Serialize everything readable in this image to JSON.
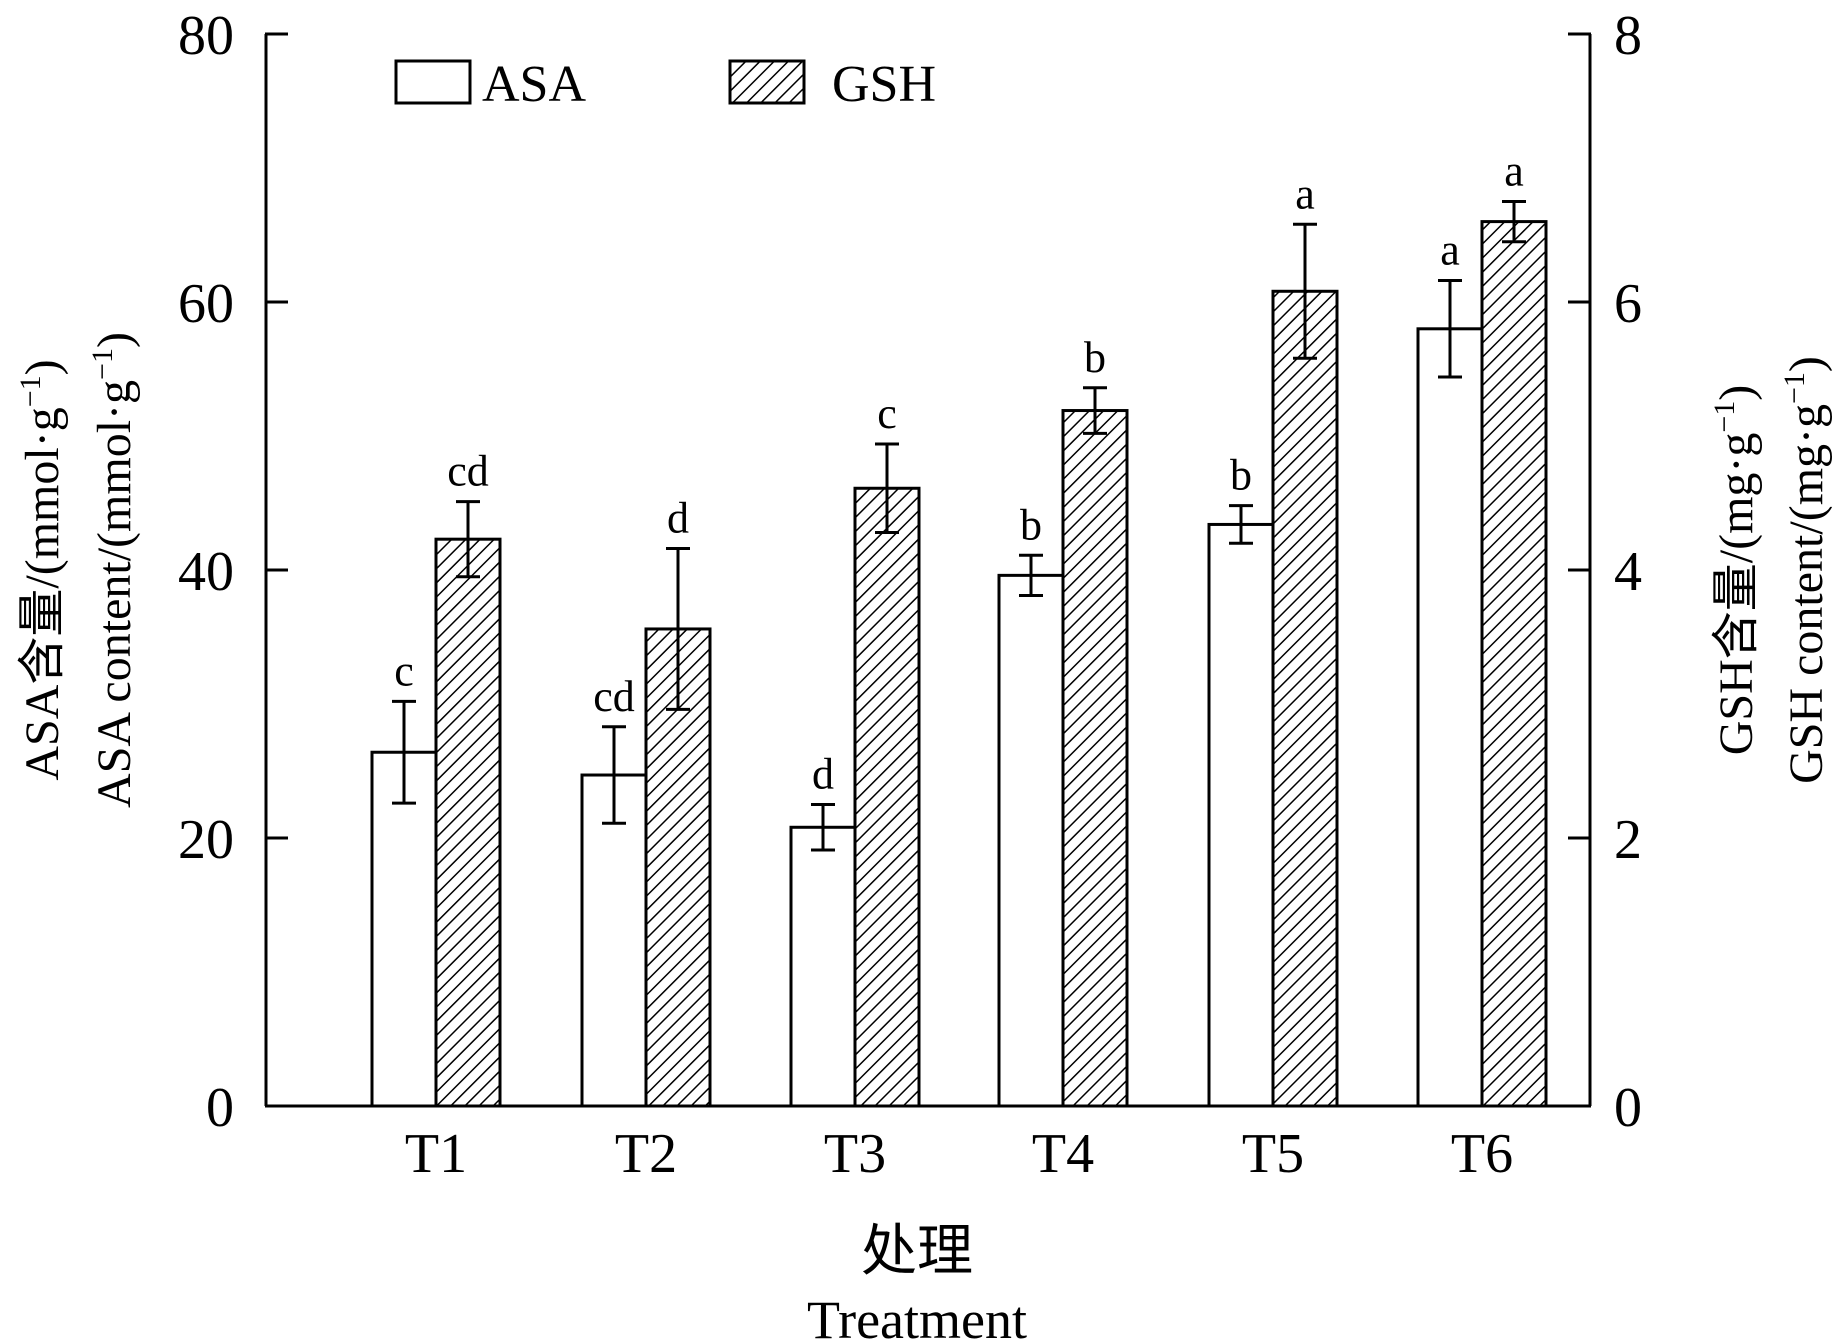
{
  "chart_data": {
    "type": "bar",
    "categories": [
      "T1",
      "T2",
      "T3",
      "T4",
      "T5",
      "T6"
    ],
    "series": [
      {
        "name": "ASA",
        "axis": "left",
        "pattern": "open",
        "values": [
          26.4,
          24.7,
          20.8,
          39.6,
          43.4,
          58.0
        ],
        "errors": [
          3.8,
          3.6,
          1.7,
          1.5,
          1.4,
          3.6
        ],
        "letters": [
          "c",
          "cd",
          "d",
          "b",
          "b",
          "a"
        ]
      },
      {
        "name": "GSH",
        "axis": "right",
        "pattern": "hatched",
        "values": [
          4.23,
          3.56,
          4.61,
          5.19,
          6.08,
          6.6
        ],
        "errors": [
          0.28,
          0.6,
          0.33,
          0.17,
          0.5,
          0.15
        ],
        "letters": [
          "cd",
          "d",
          "c",
          "b",
          "a",
          "a"
        ]
      }
    ],
    "left_axis": {
      "label_zh": "ASA含量/(mmol·g",
      "label_en": "ASA content/(mmol·g",
      "label_sup": "−1",
      "label_close": ")",
      "ylim": [
        0,
        80
      ],
      "ticks": [
        "0",
        "20",
        "40",
        "60",
        "80"
      ]
    },
    "right_axis": {
      "label_zh": "GSH含量/(mg·g",
      "label_en": "GSH content/(mg·g",
      "label_sup": "−1",
      "label_close": ")",
      "ylim": [
        0,
        8
      ],
      "ticks": [
        "0",
        "2",
        "4",
        "6",
        "8"
      ]
    },
    "x_axis": {
      "label_zh": "处理",
      "label_en": "Treatment"
    },
    "legend": {
      "position": "top-left",
      "items": [
        "ASA",
        "GSH"
      ]
    },
    "grid": false,
    "colors": {
      "stroke": "#000000",
      "asa_fill": "#ffffff",
      "gsh_hatch": "#000000"
    }
  }
}
